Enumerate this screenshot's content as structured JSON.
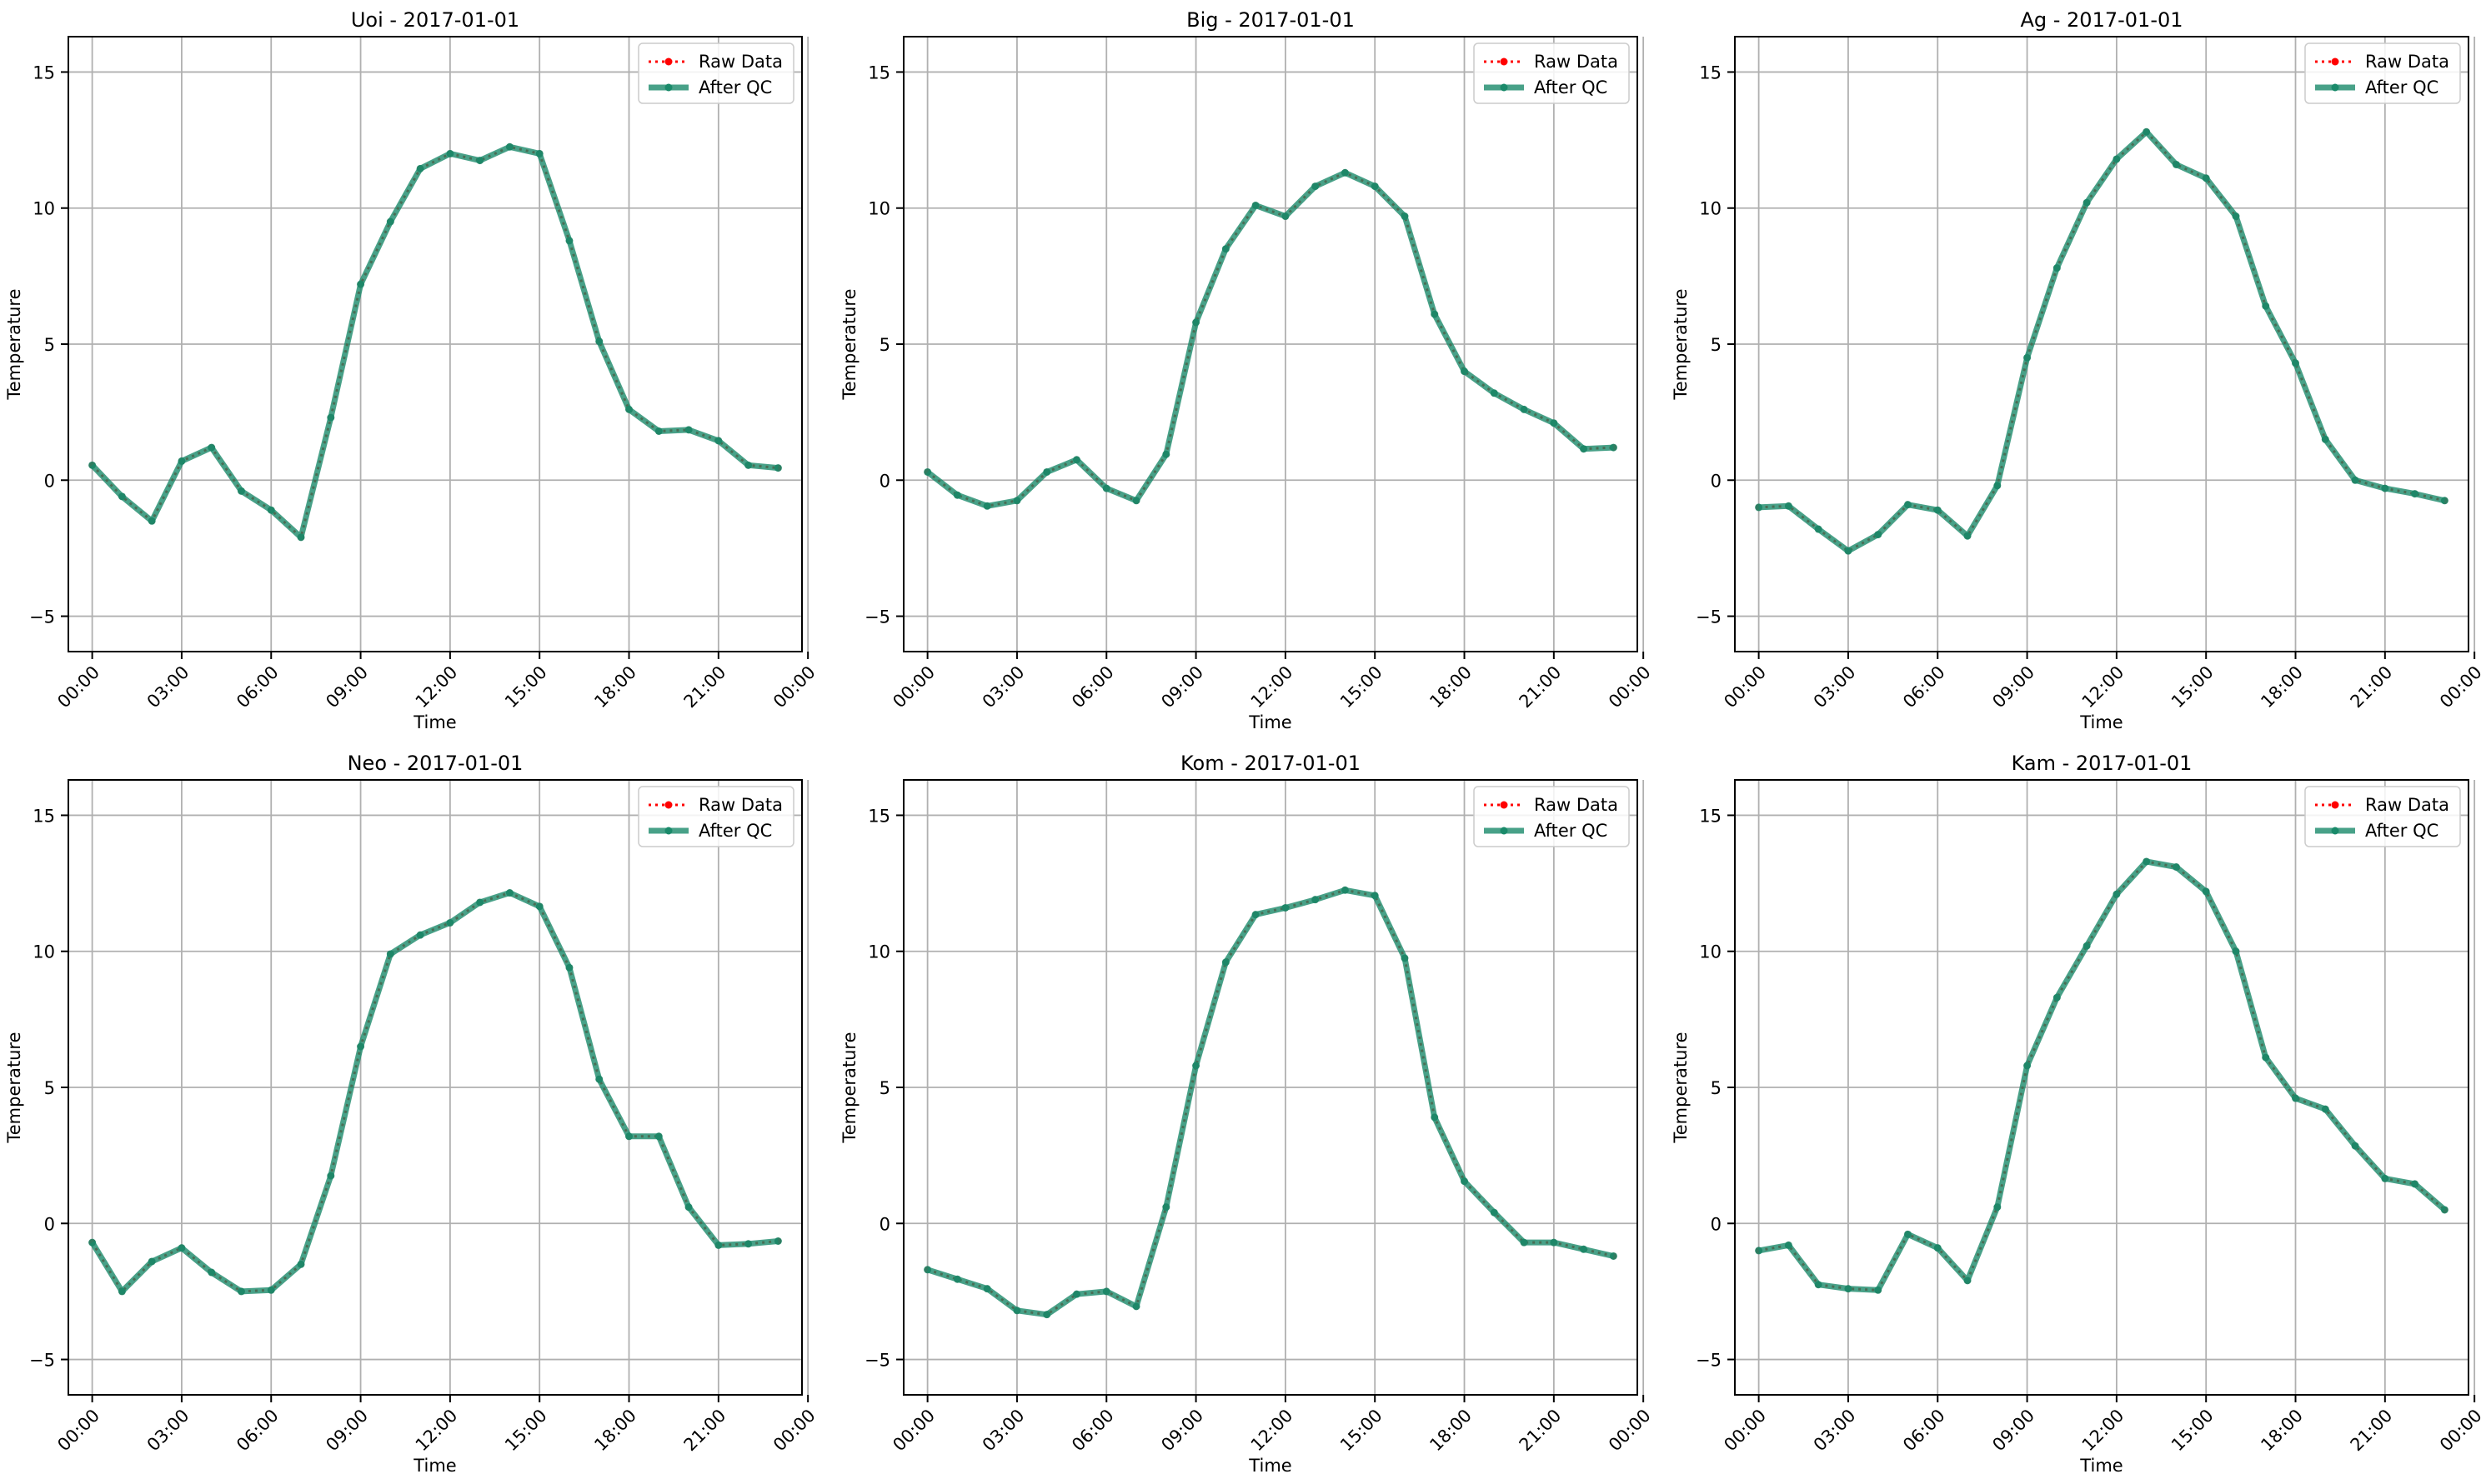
{
  "legend": {
    "raw_label": "Raw Data",
    "qc_label": "After QC"
  },
  "styles": {
    "raw_color": "#ff0000",
    "qc_color": "#1a8a6a",
    "grid_color": "#b0b0b0"
  },
  "chart_data": [
    {
      "type": "line",
      "title": "Uoi - 2017-01-01",
      "xlabel": "Time",
      "ylabel": "Temperature",
      "x": [
        "00:00",
        "01:00",
        "02:00",
        "03:00",
        "04:00",
        "05:00",
        "06:00",
        "07:00",
        "08:00",
        "09:00",
        "10:00",
        "11:00",
        "12:00",
        "13:00",
        "14:00",
        "15:00",
        "16:00",
        "17:00",
        "18:00",
        "19:00",
        "20:00",
        "21:00",
        "22:00",
        "23:00"
      ],
      "xticks": [
        "00:00",
        "03:00",
        "06:00",
        "09:00",
        "12:00",
        "15:00",
        "18:00",
        "21:00",
        "00:00"
      ],
      "yticks": [
        -5,
        0,
        5,
        10,
        15
      ],
      "ylim": [
        -6.3,
        16.3
      ],
      "grid": true,
      "legend_position": "upper right",
      "series": [
        {
          "name": "Raw Data",
          "values": [
            0.55,
            -0.6,
            -1.5,
            0.7,
            1.2,
            -0.4,
            -1.1,
            -2.1,
            2.3,
            7.2,
            9.5,
            11.45,
            12.0,
            11.75,
            12.25,
            12.0,
            8.8,
            5.1,
            2.6,
            1.8,
            1.85,
            1.45,
            0.55,
            0.45
          ]
        },
        {
          "name": "After QC",
          "values": [
            0.55,
            -0.6,
            -1.5,
            0.7,
            1.2,
            -0.4,
            -1.1,
            -2.1,
            2.3,
            7.2,
            9.5,
            11.45,
            12.0,
            11.75,
            12.25,
            12.0,
            8.8,
            5.1,
            2.6,
            1.8,
            1.85,
            1.45,
            0.55,
            0.45
          ]
        }
      ]
    },
    {
      "type": "line",
      "title": "Big - 2017-01-01",
      "xlabel": "Time",
      "ylabel": "Temperature",
      "x": [
        "00:00",
        "01:00",
        "02:00",
        "03:00",
        "04:00",
        "05:00",
        "06:00",
        "07:00",
        "08:00",
        "09:00",
        "10:00",
        "11:00",
        "12:00",
        "13:00",
        "14:00",
        "15:00",
        "16:00",
        "17:00",
        "18:00",
        "19:00",
        "20:00",
        "21:00",
        "22:00",
        "23:00"
      ],
      "xticks": [
        "00:00",
        "03:00",
        "06:00",
        "09:00",
        "12:00",
        "15:00",
        "18:00",
        "21:00",
        "00:00"
      ],
      "yticks": [
        -5,
        0,
        5,
        10,
        15
      ],
      "ylim": [
        -6.3,
        16.3
      ],
      "grid": true,
      "legend_position": "upper right",
      "series": [
        {
          "name": "Raw Data",
          "values": [
            0.3,
            -0.55,
            -0.95,
            -0.75,
            0.3,
            0.75,
            -0.3,
            -0.75,
            0.95,
            5.8,
            8.5,
            10.1,
            9.7,
            10.8,
            11.3,
            10.8,
            9.7,
            6.1,
            4.0,
            3.2,
            2.6,
            2.1,
            1.15,
            1.2
          ]
        },
        {
          "name": "After QC",
          "values": [
            0.3,
            -0.55,
            -0.95,
            -0.75,
            0.3,
            0.75,
            -0.3,
            -0.75,
            0.95,
            5.8,
            8.5,
            10.1,
            9.7,
            10.8,
            11.3,
            10.8,
            9.7,
            6.1,
            4.0,
            3.2,
            2.6,
            2.1,
            1.15,
            1.2
          ]
        }
      ]
    },
    {
      "type": "line",
      "title": "Ag - 2017-01-01",
      "xlabel": "Time",
      "ylabel": "Temperature",
      "x": [
        "00:00",
        "01:00",
        "02:00",
        "03:00",
        "04:00",
        "05:00",
        "06:00",
        "07:00",
        "08:00",
        "09:00",
        "10:00",
        "11:00",
        "12:00",
        "13:00",
        "14:00",
        "15:00",
        "16:00",
        "17:00",
        "18:00",
        "19:00",
        "20:00",
        "21:00",
        "22:00",
        "23:00"
      ],
      "xticks": [
        "00:00",
        "03:00",
        "06:00",
        "09:00",
        "12:00",
        "15:00",
        "18:00",
        "21:00",
        "00:00"
      ],
      "yticks": [
        -5,
        0,
        5,
        10,
        15
      ],
      "ylim": [
        -6.3,
        16.3
      ],
      "grid": true,
      "legend_position": "upper right",
      "series": [
        {
          "name": "Raw Data",
          "values": [
            -1.0,
            -0.95,
            -1.8,
            -2.6,
            -2.0,
            -0.9,
            -1.1,
            -2.05,
            -0.2,
            4.5,
            7.8,
            10.2,
            11.8,
            12.8,
            11.6,
            11.1,
            9.7,
            6.4,
            4.3,
            1.5,
            0.0,
            -0.3,
            -0.5,
            -0.75
          ]
        },
        {
          "name": "After QC",
          "values": [
            -1.0,
            -0.95,
            -1.8,
            -2.6,
            -2.0,
            -0.9,
            -1.1,
            -2.05,
            -0.2,
            4.5,
            7.8,
            10.2,
            11.8,
            12.8,
            11.6,
            11.1,
            9.7,
            6.4,
            4.3,
            1.5,
            0.0,
            -0.3,
            -0.5,
            -0.75
          ]
        }
      ]
    },
    {
      "type": "line",
      "title": "Neo - 2017-01-01",
      "xlabel": "Time",
      "ylabel": "Temperature",
      "x": [
        "00:00",
        "01:00",
        "02:00",
        "03:00",
        "04:00",
        "05:00",
        "06:00",
        "07:00",
        "08:00",
        "09:00",
        "10:00",
        "11:00",
        "12:00",
        "13:00",
        "14:00",
        "15:00",
        "16:00",
        "17:00",
        "18:00",
        "19:00",
        "20:00",
        "21:00",
        "22:00",
        "23:00"
      ],
      "xticks": [
        "00:00",
        "03:00",
        "06:00",
        "09:00",
        "12:00",
        "15:00",
        "18:00",
        "21:00",
        "00:00"
      ],
      "yticks": [
        -5,
        0,
        5,
        10,
        15
      ],
      "ylim": [
        -6.3,
        16.3
      ],
      "grid": true,
      "legend_position": "upper right",
      "series": [
        {
          "name": "Raw Data",
          "values": [
            -0.7,
            -2.5,
            -1.4,
            -0.9,
            -1.8,
            -2.5,
            -2.45,
            -1.5,
            1.75,
            6.5,
            9.9,
            10.6,
            11.05,
            11.8,
            12.15,
            11.65,
            9.4,
            5.3,
            3.2,
            3.2,
            0.6,
            -0.8,
            -0.75,
            -0.65
          ]
        },
        {
          "name": "After QC",
          "values": [
            -0.7,
            -2.5,
            -1.4,
            -0.9,
            -1.8,
            -2.5,
            -2.45,
            -1.5,
            1.75,
            6.5,
            9.9,
            10.6,
            11.05,
            11.8,
            12.15,
            11.65,
            9.4,
            5.3,
            3.2,
            3.2,
            0.6,
            -0.8,
            -0.75,
            -0.65
          ]
        }
      ]
    },
    {
      "type": "line",
      "title": "Kom - 2017-01-01",
      "xlabel": "Time",
      "ylabel": "Temperature",
      "x": [
        "00:00",
        "01:00",
        "02:00",
        "03:00",
        "04:00",
        "05:00",
        "06:00",
        "07:00",
        "08:00",
        "09:00",
        "10:00",
        "11:00",
        "12:00",
        "13:00",
        "14:00",
        "15:00",
        "16:00",
        "17:00",
        "18:00",
        "19:00",
        "20:00",
        "21:00",
        "22:00",
        "23:00"
      ],
      "xticks": [
        "00:00",
        "03:00",
        "06:00",
        "09:00",
        "12:00",
        "15:00",
        "18:00",
        "21:00",
        "00:00"
      ],
      "yticks": [
        -5,
        0,
        5,
        10,
        15
      ],
      "ylim": [
        -6.3,
        16.3
      ],
      "grid": true,
      "legend_position": "upper right",
      "series": [
        {
          "name": "Raw Data",
          "values": [
            -1.7,
            -2.05,
            -2.4,
            -3.2,
            -3.35,
            -2.6,
            -2.5,
            -3.05,
            0.6,
            5.8,
            9.6,
            11.35,
            11.6,
            11.9,
            12.25,
            12.05,
            9.75,
            3.9,
            1.55,
            0.4,
            -0.7,
            -0.7,
            -0.95,
            -1.2
          ]
        },
        {
          "name": "After QC",
          "values": [
            -1.7,
            -2.05,
            -2.4,
            -3.2,
            -3.35,
            -2.6,
            -2.5,
            -3.05,
            0.6,
            5.8,
            9.6,
            11.35,
            11.6,
            11.9,
            12.25,
            12.05,
            9.75,
            3.9,
            1.55,
            0.4,
            -0.7,
            -0.7,
            -0.95,
            -1.2
          ]
        }
      ]
    },
    {
      "type": "line",
      "title": "Kam - 2017-01-01",
      "xlabel": "Time",
      "ylabel": "Temperature",
      "x": [
        "00:00",
        "01:00",
        "02:00",
        "03:00",
        "04:00",
        "05:00",
        "06:00",
        "07:00",
        "08:00",
        "09:00",
        "10:00",
        "11:00",
        "12:00",
        "13:00",
        "14:00",
        "15:00",
        "16:00",
        "17:00",
        "18:00",
        "19:00",
        "20:00",
        "21:00",
        "22:00",
        "23:00"
      ],
      "xticks": [
        "00:00",
        "03:00",
        "06:00",
        "09:00",
        "12:00",
        "15:00",
        "18:00",
        "21:00",
        "00:00"
      ],
      "yticks": [
        -5,
        0,
        5,
        10,
        15
      ],
      "ylim": [
        -6.3,
        16.3
      ],
      "grid": true,
      "legend_position": "upper right",
      "series": [
        {
          "name": "Raw Data",
          "values": [
            -1.0,
            -0.8,
            -2.25,
            -2.4,
            -2.45,
            -0.4,
            -0.9,
            -2.1,
            0.6,
            5.8,
            8.3,
            10.2,
            12.1,
            13.3,
            13.1,
            12.2,
            10.0,
            6.1,
            4.6,
            4.2,
            2.85,
            1.65,
            1.45,
            0.5
          ]
        },
        {
          "name": "After QC",
          "values": [
            -1.0,
            -0.8,
            -2.25,
            -2.4,
            -2.45,
            -0.4,
            -0.9,
            -2.1,
            0.6,
            5.8,
            8.3,
            10.2,
            12.1,
            13.3,
            13.1,
            12.2,
            10.0,
            6.1,
            4.6,
            4.2,
            2.85,
            1.65,
            1.45,
            0.5
          ]
        }
      ]
    }
  ]
}
